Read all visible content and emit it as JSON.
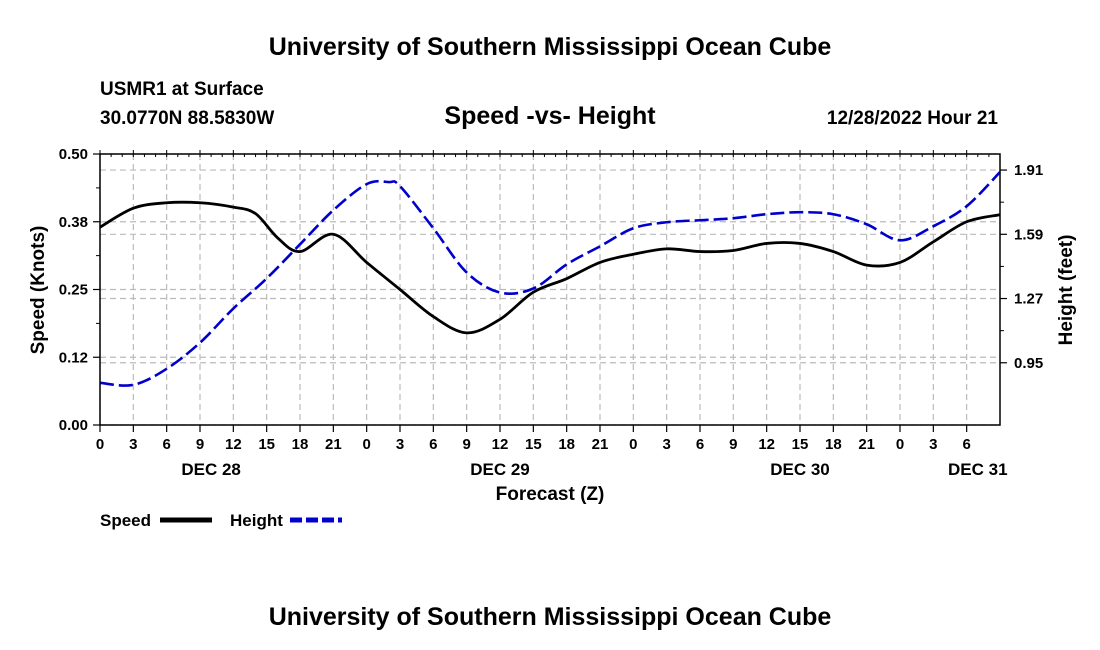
{
  "header": {
    "title": "University of Southern Mississippi Ocean Cube",
    "station": "USMR1 at Surface",
    "coords": "30.0770N  88.5830W",
    "subtitle": "Speed -vs- Height",
    "timestamp": "12/28/2022 Hour 21"
  },
  "footer": {
    "title": "University of Southern Mississippi Ocean Cube"
  },
  "colors": {
    "speed": "#000000",
    "height": "#0000cc",
    "grid": "#bbbbbb"
  },
  "chart_data": {
    "type": "line",
    "title": "Speed -vs- Height",
    "xlabel": "Forecast (Z)",
    "ylabel": "Speed (Knots)",
    "y2label": "Height (feet)",
    "x_range_hours": [
      0,
      81
    ],
    "ylim": [
      0.0,
      0.5
    ],
    "y2lim": [
      0.64,
      1.99
    ],
    "yticks": [
      "0.00",
      "0.12",
      "0.25",
      "0.38",
      "0.50"
    ],
    "ytick_values": [
      0.0,
      0.125,
      0.25,
      0.375,
      0.5
    ],
    "y2ticks": [
      "0.95",
      "1.27",
      "1.59",
      "1.91"
    ],
    "y2tick_values": [
      0.95,
      1.27,
      1.59,
      1.91
    ],
    "xtick_labels": [
      "0",
      "3",
      "6",
      "9",
      "12",
      "15",
      "18",
      "21",
      "0",
      "3",
      "6",
      "9",
      "12",
      "15",
      "18",
      "21",
      "0",
      "3",
      "6",
      "9",
      "12",
      "15",
      "18",
      "21",
      "0",
      "3",
      "6"
    ],
    "date_labels": [
      {
        "text": "DEC 28",
        "hour": 10
      },
      {
        "text": "DEC 29",
        "hour": 36
      },
      {
        "text": "DEC 30",
        "hour": 63
      },
      {
        "text": "DEC 31",
        "hour": 79
      }
    ],
    "legend": [
      {
        "name": "Speed",
        "style": "solid"
      },
      {
        "name": "Height",
        "style": "dashed"
      }
    ],
    "series": [
      {
        "name": "Speed",
        "axis": "left",
        "x": [
          0,
          3,
          6,
          9,
          12,
          14,
          16,
          18,
          21,
          24,
          27,
          30,
          33,
          36,
          39,
          42,
          45,
          48,
          51,
          54,
          57,
          60,
          63,
          66,
          69,
          72,
          75,
          78,
          81
        ],
        "values": [
          0.365,
          0.4,
          0.41,
          0.41,
          0.402,
          0.39,
          0.345,
          0.32,
          0.352,
          0.3,
          0.25,
          0.2,
          0.17,
          0.195,
          0.245,
          0.27,
          0.3,
          0.315,
          0.325,
          0.32,
          0.322,
          0.335,
          0.335,
          0.32,
          0.295,
          0.3,
          0.338,
          0.375,
          0.388
        ]
      },
      {
        "name": "Height",
        "axis": "right",
        "x": [
          0,
          3,
          6,
          9,
          12,
          15,
          18,
          21,
          24,
          26,
          27,
          30,
          33,
          36,
          39,
          42,
          45,
          48,
          51,
          54,
          57,
          60,
          63,
          66,
          69,
          72,
          75,
          78,
          81
        ],
        "values": [
          0.85,
          0.84,
          0.92,
          1.05,
          1.22,
          1.37,
          1.54,
          1.71,
          1.84,
          1.85,
          1.83,
          1.62,
          1.4,
          1.3,
          1.32,
          1.44,
          1.53,
          1.62,
          1.65,
          1.66,
          1.67,
          1.69,
          1.7,
          1.69,
          1.64,
          1.56,
          1.63,
          1.73,
          1.9
        ]
      }
    ]
  }
}
